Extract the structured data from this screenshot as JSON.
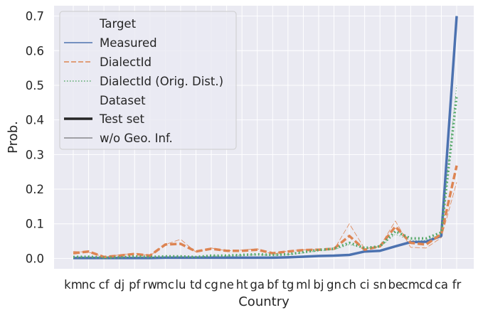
{
  "chart_data": {
    "type": "line",
    "xlabel": "Country",
    "ylabel": "Prob.",
    "ylim": [
      -0.03,
      0.73
    ],
    "yticks": [
      0.0,
      0.1,
      0.2,
      0.3,
      0.4,
      0.5,
      0.6,
      0.7
    ],
    "ytick_labels": [
      "0.0",
      "0.1",
      "0.2",
      "0.3",
      "0.4",
      "0.5",
      "0.6",
      "0.7"
    ],
    "grid": true,
    "legend_position": "top-left",
    "categories": [
      "km",
      "nc",
      "cf",
      "dj",
      "pf",
      "rw",
      "mc",
      "lu",
      "td",
      "cg",
      "ne",
      "ht",
      "ga",
      "bf",
      "tg",
      "ml",
      "bj",
      "gn",
      "ch",
      "ci",
      "sn",
      "be",
      "cm",
      "cd",
      "ca",
      "fr"
    ],
    "legend": {
      "target_title": "Target",
      "dataset_title": "Dataset",
      "entries": [
        "Measured",
        "DialectId",
        "DialectId (Orig. Dist.)"
      ],
      "dataset_entries": [
        "Test set",
        "w/o Geo. Inf."
      ]
    },
    "colors": {
      "Measured": "#4c72b0",
      "DialectId": "#dd8452",
      "DialectId (Orig. Dist.)": "#55a868",
      "dataset_key": "#262626",
      "background": "#eaeaf2",
      "grid": "#ffffff"
    },
    "series": [
      {
        "name": "Measured",
        "dataset": "Test set",
        "values": [
          0.001,
          0.001,
          0.001,
          0.001,
          0.001,
          0.001,
          0.002,
          0.002,
          0.002,
          0.002,
          0.002,
          0.002,
          0.002,
          0.002,
          0.003,
          0.005,
          0.007,
          0.008,
          0.01,
          0.02,
          0.022,
          0.035,
          0.047,
          0.048,
          0.065,
          0.7
        ]
      },
      {
        "name": "Measured",
        "dataset": "w/o Geo. Inf.",
        "values": [
          0.001,
          0.001,
          0.001,
          0.001,
          0.001,
          0.001,
          0.002,
          0.002,
          0.002,
          0.002,
          0.002,
          0.002,
          0.002,
          0.002,
          0.003,
          0.005,
          0.007,
          0.008,
          0.01,
          0.02,
          0.022,
          0.035,
          0.047,
          0.048,
          0.065,
          0.7
        ]
      },
      {
        "name": "DialectId",
        "dataset": "Test set",
        "values": [
          0.015,
          0.02,
          0.004,
          0.008,
          0.013,
          0.008,
          0.04,
          0.042,
          0.02,
          0.028,
          0.022,
          0.022,
          0.025,
          0.015,
          0.02,
          0.024,
          0.025,
          0.028,
          0.065,
          0.025,
          0.035,
          0.092,
          0.045,
          0.04,
          0.07,
          0.268
        ]
      },
      {
        "name": "DialectId",
        "dataset": "w/o Geo. Inf.",
        "values": [
          0.02,
          0.018,
          0.004,
          0.01,
          0.015,
          0.008,
          0.04,
          0.055,
          0.018,
          0.03,
          0.022,
          0.024,
          0.028,
          0.012,
          0.022,
          0.025,
          0.026,
          0.025,
          0.1,
          0.028,
          0.035,
          0.108,
          0.032,
          0.03,
          0.06,
          0.22
        ]
      },
      {
        "name": "DialectId (Orig. Dist.)",
        "dataset": "Test set",
        "values": [
          0.004,
          0.005,
          0.002,
          0.003,
          0.006,
          0.004,
          0.006,
          0.006,
          0.004,
          0.008,
          0.008,
          0.01,
          0.012,
          0.01,
          0.012,
          0.018,
          0.024,
          0.028,
          0.045,
          0.03,
          0.035,
          0.078,
          0.058,
          0.058,
          0.075,
          0.47
        ]
      },
      {
        "name": "DialectId (Orig. Dist.)",
        "dataset": "w/o Geo. Inf.",
        "values": [
          0.004,
          0.005,
          0.002,
          0.003,
          0.005,
          0.004,
          0.005,
          0.005,
          0.004,
          0.007,
          0.007,
          0.009,
          0.01,
          0.009,
          0.011,
          0.016,
          0.022,
          0.025,
          0.04,
          0.028,
          0.033,
          0.07,
          0.052,
          0.052,
          0.07,
          0.5
        ]
      }
    ]
  }
}
